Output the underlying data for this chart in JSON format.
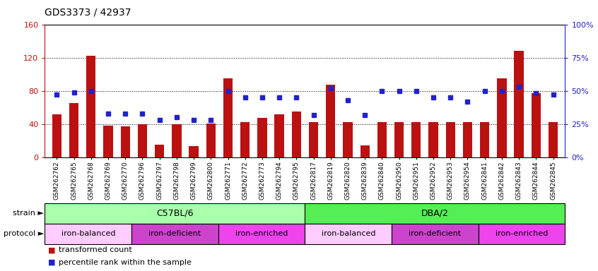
{
  "title": "GDS3373 / 42937",
  "samples": [
    "GSM262762",
    "GSM262765",
    "GSM262768",
    "GSM262769",
    "GSM262770",
    "GSM262796",
    "GSM262797",
    "GSM262798",
    "GSM262799",
    "GSM262800",
    "GSM262771",
    "GSM262772",
    "GSM262773",
    "GSM262794",
    "GSM262795",
    "GSM262817",
    "GSM262819",
    "GSM262820",
    "GSM262839",
    "GSM262840",
    "GSM262950",
    "GSM262951",
    "GSM262952",
    "GSM262953",
    "GSM262954",
    "GSM262841",
    "GSM262842",
    "GSM262843",
    "GSM262844",
    "GSM262845"
  ],
  "bar_values": [
    52,
    65,
    122,
    38,
    37,
    40,
    15,
    40,
    13,
    41,
    95,
    42,
    47,
    52,
    55,
    42,
    87,
    42,
    14,
    42,
    42,
    42,
    42,
    42,
    42,
    42,
    95,
    128,
    77,
    42
  ],
  "dot_values": [
    47,
    49,
    50,
    33,
    33,
    33,
    28,
    30,
    28,
    28,
    50,
    45,
    45,
    45,
    45,
    32,
    52,
    43,
    32,
    50,
    50,
    50,
    45,
    45,
    42,
    50,
    50,
    53,
    48,
    47
  ],
  "ylim_left": [
    0,
    160
  ],
  "ylim_right": [
    0,
    100
  ],
  "yticks_left": [
    0,
    40,
    80,
    120,
    160
  ],
  "yticks_right": [
    0,
    25,
    50,
    75,
    100
  ],
  "bar_color": "#bb1111",
  "dot_color": "#2222cc",
  "bg_color": "#ffffff",
  "strain_groups": [
    {
      "label": "C57BL/6",
      "start": 0,
      "end": 15,
      "color": "#aaffaa"
    },
    {
      "label": "DBA/2",
      "start": 15,
      "end": 30,
      "color": "#55ee55"
    }
  ],
  "protocol_groups": [
    {
      "label": "iron-balanced",
      "start": 0,
      "end": 5,
      "color": "#ffccff"
    },
    {
      "label": "iron-deficient",
      "start": 5,
      "end": 10,
      "color": "#cc44cc"
    },
    {
      "label": "iron-enriched",
      "start": 10,
      "end": 15,
      "color": "#ee44ee"
    },
    {
      "label": "iron-balanced",
      "start": 15,
      "end": 20,
      "color": "#ffccff"
    },
    {
      "label": "iron-deficient",
      "start": 20,
      "end": 25,
      "color": "#cc44cc"
    },
    {
      "label": "iron-enriched",
      "start": 25,
      "end": 30,
      "color": "#ee44ee"
    }
  ],
  "legend_items": [
    {
      "label": "transformed count",
      "color": "#bb1111"
    },
    {
      "label": "percentile rank within the sample",
      "color": "#2222cc"
    }
  ]
}
